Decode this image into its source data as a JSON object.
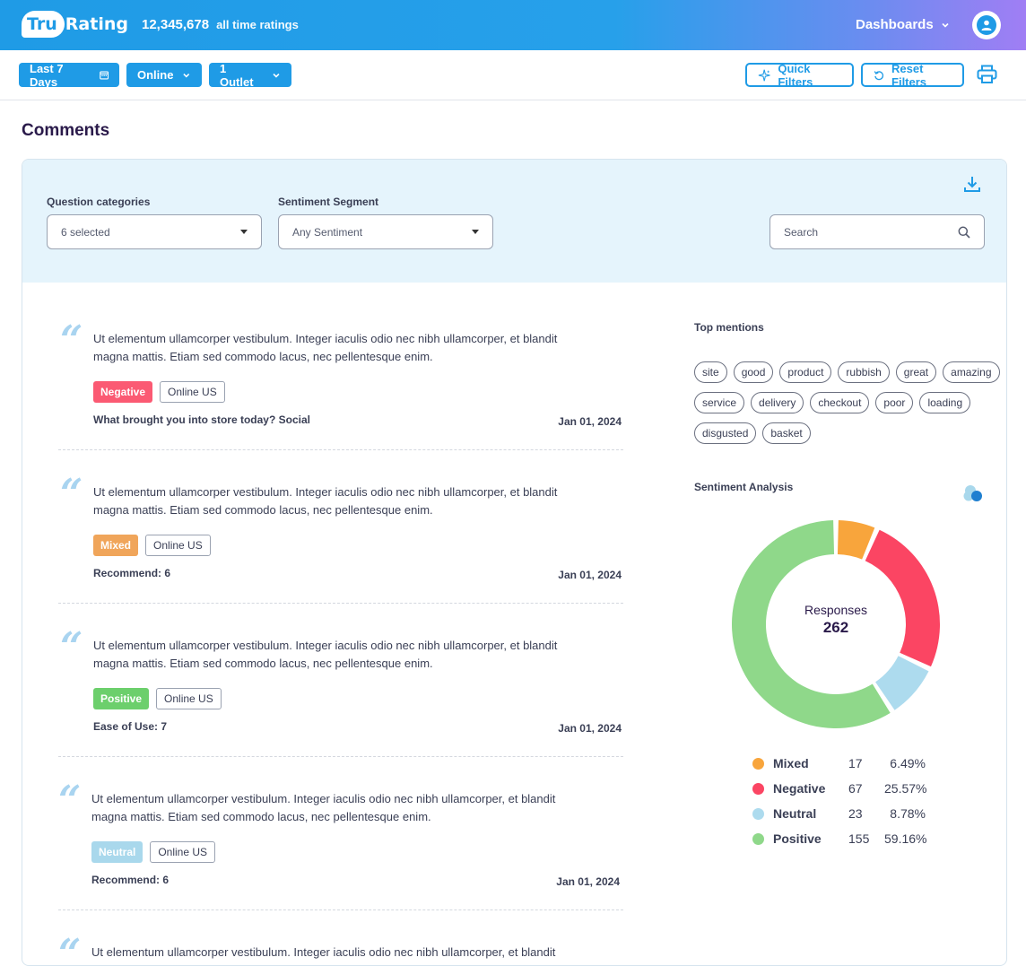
{
  "header": {
    "logo_first": "Tru",
    "logo_second": "Rating",
    "ratings_count": "12,345,678",
    "ratings_label": "all time ratings",
    "dashboards_label": "Dashboards"
  },
  "filters": {
    "date_range": "Last 7 Days",
    "channel": "Online",
    "outlet": "1 Outlet",
    "quick_filters": "Quick Filters",
    "reset_filters": "Reset Filters"
  },
  "page": {
    "title": "Comments"
  },
  "comment_filters": {
    "categories_label": "Question categories",
    "categories_value": "6 selected",
    "sentiment_label": "Sentiment Segment",
    "sentiment_value": "Any Sentiment",
    "search_placeholder": "Search"
  },
  "comments": [
    {
      "text": "Ut elementum ullamcorper vestibulum. Integer iaculis odio nec nibh ullamcorper, et blandit magna mattis. Etiam sed commodo lacus, nec pellentesque enim.",
      "sentiment": "Negative",
      "sentiment_color": "#fb5a73",
      "outlet": "Online US",
      "question": "What brought you into store today? Social",
      "date": "Jan 01, 2024"
    },
    {
      "text": "Ut elementum ullamcorper vestibulum. Integer iaculis odio nec nibh ullamcorper, et blandit magna mattis. Etiam sed commodo lacus, nec pellentesque enim.",
      "sentiment": "Mixed",
      "sentiment_color": "#f0a55a",
      "outlet": "Online US",
      "question": "Recommend: 6",
      "date": "Jan 01, 2024"
    },
    {
      "text": "Ut elementum ullamcorper vestibulum. Integer iaculis odio nec nibh ullamcorper, et blandit magna mattis. Etiam sed commodo lacus, nec pellentesque enim.",
      "sentiment": "Positive",
      "sentiment_color": "#6ccf6c",
      "outlet": "Online US",
      "question": "Ease of Use: 7",
      "date": "Jan 01, 2024"
    },
    {
      "text": "Ut elementum ullamcorper vestibulum. Integer iaculis odio nec nibh ullamcorper, et blandit magna mattis. Etiam sed commodo lacus, nec pellentesque enim.",
      "sentiment": "Neutral",
      "sentiment_color": "#a9d8ec",
      "outlet": "Online US",
      "question": "Recommend: 6",
      "date": "Jan 01, 2024"
    },
    {
      "text": "Ut elementum ullamcorper vestibulum. Integer iaculis odio nec nibh ullamcorper, et blandit magna mattis. Etiam sed commodo lacus, nec pellentesque enim."
    }
  ],
  "top_mentions": {
    "title": "Top mentions",
    "items": [
      "site",
      "good",
      "product",
      "rubbish",
      "great",
      "amazing",
      "service",
      "delivery",
      "checkout",
      "poor",
      "loading",
      "disgusted",
      "basket"
    ]
  },
  "sentiment_analysis": {
    "title": "Sentiment Analysis",
    "center_label": "Responses",
    "center_value": "262"
  },
  "chart_data": {
    "type": "pie",
    "title": "Sentiment Analysis",
    "total": 262,
    "series": [
      {
        "name": "Mixed",
        "count": 17,
        "percent": "6.49%",
        "color": "#f8a53c"
      },
      {
        "name": "Negative",
        "count": 67,
        "percent": "25.57%",
        "color": "#fb4563"
      },
      {
        "name": "Neutral",
        "count": 23,
        "percent": "8.78%",
        "color": "#addbee"
      },
      {
        "name": "Positive",
        "count": 155,
        "percent": "59.16%",
        "color": "#8fd88a"
      }
    ]
  },
  "colors": {
    "accent": "#1f9be6"
  }
}
